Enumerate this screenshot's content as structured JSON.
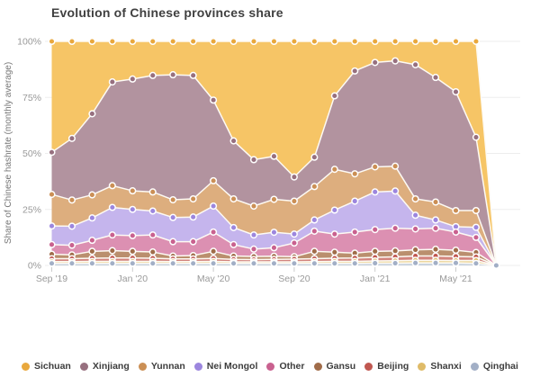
{
  "header": {
    "title": "Evolution of Chinese provinces share"
  },
  "colors": {
    "background": "#ffffff",
    "grid": "#ededed",
    "tick_mark": "#cccccc",
    "axis_text": "#999999",
    "axis_title_text": "#777777",
    "title_text": "#404040",
    "legend_text": "#3d3d3d",
    "boundary_line": "#fdfaf4"
  },
  "chart_data": {
    "type": "area",
    "stacked": true,
    "title": "Evolution of Chinese provinces share",
    "xlabel": "",
    "ylabel": "Share of Chinese hashrate (monthly average)",
    "ylim": [
      0,
      100
    ],
    "grid": true,
    "legend_position": "bottom",
    "y_ticks": [
      {
        "label": "0%",
        "value": 0
      },
      {
        "label": "25%",
        "value": 25
      },
      {
        "label": "50%",
        "value": 50
      },
      {
        "label": "75%",
        "value": 75
      },
      {
        "label": "100%",
        "value": 100
      }
    ],
    "x": [
      "Sep '19",
      "Oct '19",
      "Nov '19",
      "Dec '19",
      "Jan '20",
      "Feb '20",
      "Mar '20",
      "Apr '20",
      "May '20",
      "Jun '20",
      "Jul '20",
      "Aug '20",
      "Sep '20",
      "Oct '20",
      "Nov '20",
      "Dec '20",
      "Jan '21",
      "Feb '21",
      "Mar '21",
      "Apr '21",
      "May '21",
      "Jun '21",
      "Jul '21"
    ],
    "x_tick_indices": [
      0,
      4,
      8,
      12,
      16,
      20
    ],
    "stack_order": "bottom-to-top",
    "series": [
      {
        "id": "qinghai",
        "name": "Qinghai",
        "fill": "#C9D3DF",
        "dot": "#A2AFC6",
        "values": [
          0.9,
          0.9,
          0.9,
          0.9,
          0.9,
          0.9,
          0.9,
          0.9,
          0.9,
          0.9,
          0.9,
          0.9,
          0.9,
          0.9,
          0.9,
          0.9,
          1.0,
          1.0,
          1.1,
          1.1,
          1.1,
          0.9,
          0
        ]
      },
      {
        "id": "shanxi",
        "name": "Shanxi",
        "fill": "#ECD79F",
        "dot": "#DFBB68",
        "values": [
          0.8,
          0.8,
          0.9,
          0.9,
          0.9,
          0.9,
          0.8,
          0.8,
          0.9,
          0.7,
          0.7,
          0.7,
          0.7,
          0.8,
          0.9,
          0.9,
          1.0,
          1.1,
          1.2,
          1.2,
          1.1,
          1.3,
          0
        ]
      },
      {
        "id": "beijing",
        "name": "Beijing",
        "dot": "#C05750",
        "fill": "#D2847E",
        "values": [
          1.3,
          1.3,
          1.4,
          1.5,
          1.5,
          1.4,
          1.2,
          1.2,
          1.3,
          1.1,
          1.0,
          1.1,
          1.2,
          1.3,
          1.4,
          1.5,
          1.6,
          1.7,
          1.9,
          1.9,
          1.8,
          1.6,
          0
        ]
      },
      {
        "id": "gansu",
        "name": "Gansu",
        "fill": "#BA8F6E",
        "dot": "#A06C49",
        "values": [
          2.0,
          1.7,
          3.1,
          3.3,
          3.0,
          2.8,
          1.3,
          1.5,
          3.2,
          1.5,
          1.4,
          1.4,
          1.1,
          3.3,
          2.7,
          2.2,
          2.7,
          2.7,
          2.8,
          3.0,
          2.8,
          2.0,
          0
        ]
      },
      {
        "id": "other",
        "name": "Other",
        "fill": "#DC90B2",
        "dot": "#C9618F",
        "values": [
          4.3,
          4.3,
          4.9,
          7.0,
          7.0,
          7.6,
          6.4,
          6.2,
          8.6,
          5.1,
          3.3,
          3.8,
          6.1,
          9.0,
          8.1,
          9.4,
          9.7,
          10.1,
          9.3,
          9.4,
          8.1,
          6.7,
          0
        ]
      },
      {
        "id": "nei-mongol",
        "name": "Nei Mongol",
        "fill": "#C5B5ED",
        "dot": "#9C86DE",
        "values": [
          8.3,
          8.5,
          10.0,
          12.3,
          11.7,
          10.7,
          10.8,
          11.0,
          11.6,
          7.6,
          6.3,
          6.9,
          4.0,
          5.0,
          10.7,
          13.8,
          16.8,
          16.6,
          6.1,
          3.7,
          2.4,
          4.5,
          0
        ]
      },
      {
        "id": "yunnan",
        "name": "Yunnan",
        "fill": "#DDAE7E",
        "dot": "#CB8F55",
        "values": [
          14.1,
          11.7,
          10.3,
          9.7,
          8.3,
          8.5,
          7.9,
          8.1,
          11.3,
          12.8,
          12.9,
          14.7,
          14.7,
          14.9,
          18.2,
          12.2,
          11.2,
          11.1,
          7.3,
          8.0,
          7.2,
          7.5,
          0
        ]
      },
      {
        "id": "xinjiang",
        "name": "Xinjiang",
        "fill": "#B2939F",
        "dot": "#97707F",
        "values": [
          18.8,
          27.5,
          36.2,
          46.3,
          49.9,
          52.0,
          55.8,
          55.1,
          36.0,
          25.9,
          20.7,
          19.2,
          10.8,
          13.1,
          32.8,
          45.9,
          46.6,
          47.0,
          59.9,
          55.6,
          53.0,
          32.7,
          0
        ]
      },
      {
        "id": "sichuan",
        "name": "Sichuan",
        "fill": "#F6C566",
        "dot": "#E9A83D",
        "values": [
          49.5,
          43.3,
          32.3,
          18.1,
          16.8,
          15.2,
          14.9,
          15.2,
          26.2,
          44.4,
          52.8,
          51.3,
          60.5,
          51.7,
          24.3,
          13.2,
          9.4,
          8.7,
          10.4,
          16.1,
          22.5,
          42.8,
          0
        ]
      }
    ]
  }
}
